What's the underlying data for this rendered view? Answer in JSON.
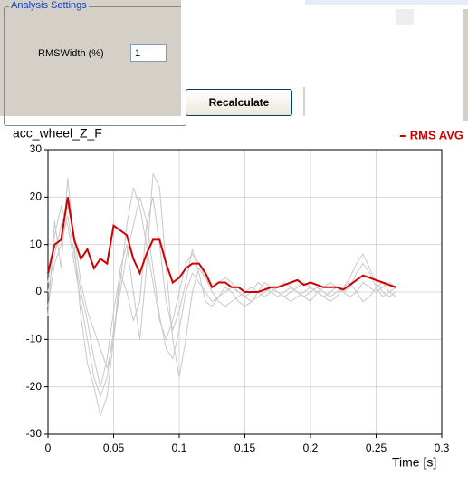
{
  "settings": {
    "group_title": "Analysis Settings",
    "field_label": "RMSWidth (%)",
    "field_value": "1",
    "button": "Recalculate"
  },
  "chart_data": {
    "type": "line",
    "title": "acc_wheel_Z_F",
    "x_label": "Time [s]",
    "x": [
      0,
      0.005,
      0.01,
      0.015,
      0.02,
      0.025,
      0.03,
      0.035,
      0.04,
      0.045,
      0.05,
      0.055,
      0.06,
      0.065,
      0.07,
      0.075,
      0.08,
      0.085,
      0.09,
      0.095,
      0.1,
      0.105,
      0.11,
      0.115,
      0.12,
      0.125,
      0.13,
      0.135,
      0.14,
      0.145,
      0.15,
      0.155,
      0.16,
      0.165,
      0.17,
      0.175,
      0.18,
      0.185,
      0.19,
      0.195,
      0.2,
      0.205,
      0.21,
      0.215,
      0.22,
      0.225,
      0.23,
      0.235,
      0.24,
      0.245,
      0.25,
      0.255,
      0.26,
      0.265
    ],
    "xlim": [
      0,
      0.3
    ],
    "xticks": [
      0,
      0.05,
      0.1,
      0.15,
      0.2,
      0.25,
      0.3
    ],
    "ylim": [
      -30,
      30
    ],
    "yticks": [
      -30,
      -20,
      -10,
      0,
      10,
      20,
      30
    ],
    "grid": true,
    "legend": "top-right",
    "series": [
      {
        "color": "#c8c8c8",
        "values": [
          -5,
          15,
          5,
          24,
          10,
          -5,
          -15,
          -20,
          -26,
          -22,
          -10,
          5,
          10,
          0,
          -10,
          5,
          25,
          22,
          5,
          -10,
          -18,
          -10,
          0,
          5,
          3,
          0,
          -2,
          -3,
          -2,
          -1,
          0,
          1,
          0,
          -1,
          0,
          1,
          2,
          1,
          0,
          -1,
          0,
          1,
          0,
          -1,
          0,
          1,
          3,
          6,
          8,
          5,
          2,
          0,
          -1,
          0
        ]
      },
      {
        "color": "#c8c8c8",
        "values": [
          2,
          12,
          18,
          14,
          6,
          -2,
          -10,
          -18,
          -22,
          -18,
          -8,
          0,
          8,
          14,
          20,
          15,
          5,
          -5,
          -12,
          -14,
          -8,
          0,
          4,
          2,
          0,
          -2,
          -1,
          0,
          1,
          0,
          -1,
          -2,
          -1,
          0,
          1,
          0,
          -1,
          0,
          1,
          2,
          1,
          0,
          -1,
          0,
          1,
          0,
          1,
          4,
          6,
          4,
          1,
          -1,
          0,
          1
        ]
      },
      {
        "color": "#c8c8c8",
        "values": [
          0,
          8,
          14,
          18,
          12,
          2,
          -4,
          -8,
          -12,
          -16,
          -10,
          2,
          14,
          22,
          18,
          10,
          2,
          -6,
          -10,
          -6,
          0,
          6,
          8,
          6,
          3,
          1,
          2,
          3,
          2,
          0,
          -1,
          0,
          2,
          1,
          0,
          -1,
          0,
          1,
          0,
          -1,
          -2,
          0,
          1,
          2,
          1,
          0,
          -1,
          0,
          2,
          1,
          0,
          1,
          2,
          1
        ]
      },
      {
        "color": "#c8c8c8",
        "values": [
          -3,
          6,
          10,
          16,
          8,
          0,
          -6,
          -14,
          -20,
          -14,
          -4,
          4,
          0,
          -6,
          -2,
          14,
          20,
          10,
          -2,
          -8,
          -4,
          2,
          9,
          4,
          -2,
          -3,
          -1,
          1,
          0,
          -2,
          -3,
          -2,
          0,
          2,
          1,
          0,
          -1,
          -2,
          -1,
          0,
          1,
          0,
          -1,
          -2,
          -1,
          1,
          2,
          0,
          -2,
          -1,
          1,
          2,
          0,
          -1
        ]
      },
      {
        "name": "RMS AVG",
        "color": "#d00000",
        "values": [
          4,
          10,
          11,
          20,
          11,
          7,
          9,
          5,
          7,
          6,
          14,
          13,
          12,
          7,
          4,
          8,
          11,
          11,
          6,
          2,
          3,
          5,
          6,
          6,
          4,
          1,
          2,
          2,
          1,
          1,
          0,
          0,
          0,
          0.5,
          1,
          1,
          1.5,
          2,
          2.5,
          1.5,
          2,
          1.5,
          1,
          1,
          1,
          0.5,
          1.5,
          2.5,
          3.5,
          3,
          2.5,
          2,
          1.5,
          1
        ]
      }
    ]
  }
}
